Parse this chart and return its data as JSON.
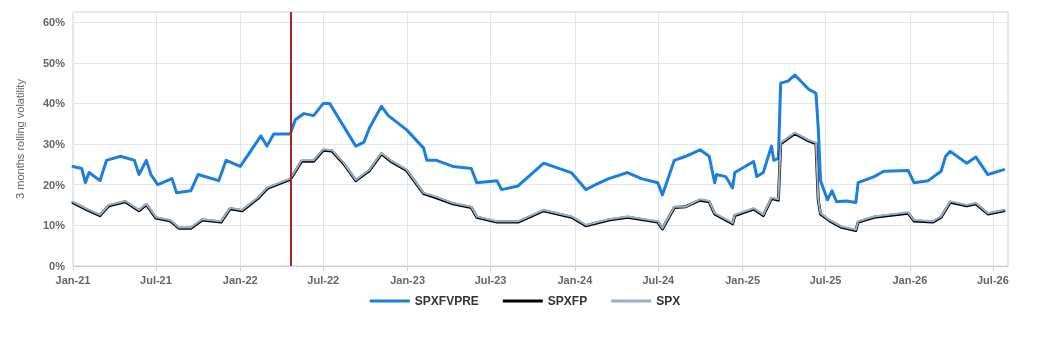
{
  "chart_data": {
    "type": "line",
    "ylabel": "3 months rolling volatility",
    "xlim": [
      "2021-01-01",
      "2026-08-03"
    ],
    "xticks": [
      {
        "value": "2021-01-01",
        "label": "Jan-21"
      },
      {
        "value": "2021-07-01",
        "label": "Jul-21"
      },
      {
        "value": "2022-01-01",
        "label": "Jan-22"
      },
      {
        "value": "2022-07-01",
        "label": "Jul-22"
      },
      {
        "value": "2023-01-01",
        "label": "Jan-23"
      },
      {
        "value": "2023-07-01",
        "label": "Jul-23"
      },
      {
        "value": "2024-01-01",
        "label": "Jan-24"
      },
      {
        "value": "2024-07-01",
        "label": "Jul-24"
      },
      {
        "value": "2025-01-01",
        "label": "Jan-25"
      },
      {
        "value": "2025-07-01",
        "label": "Jul-25"
      },
      {
        "value": "2026-01-01",
        "label": "Jan-26"
      },
      {
        "value": "2026-07-01",
        "label": "Jul-26"
      }
    ],
    "ylim": [
      0,
      62.5
    ],
    "yticks": [
      {
        "value": 0,
        "label": "0%"
      },
      {
        "value": 10,
        "label": "10%"
      },
      {
        "value": 20,
        "label": "20%"
      },
      {
        "value": 30,
        "label": "30%"
      },
      {
        "value": 40,
        "label": "40%"
      },
      {
        "value": 50,
        "label": "50%"
      },
      {
        "value": 60,
        "label": "60%"
      }
    ],
    "grid": true,
    "legend": "bottom",
    "marker": "none",
    "line_style": "solid",
    "ref_lines": [
      {
        "axis": "x",
        "value": "2022-04-20",
        "color": "#b22222"
      }
    ],
    "series": [
      {
        "name": "SPXFVPRE",
        "color": "#1a7fe0",
        "x": [
          "2021-01-01",
          "2021-01-20",
          "2021-01-28",
          "2021-02-05",
          "2021-03-01",
          "2021-03-15",
          "2021-04-15",
          "2021-05-15",
          "2021-05-25",
          "2021-06-10",
          "2021-06-20",
          "2021-07-05",
          "2021-08-05",
          "2021-08-15",
          "2021-09-15",
          "2021-10-01",
          "2021-11-15",
          "2021-12-01",
          "2022-01-01",
          "2022-02-15",
          "2022-02-28",
          "2022-03-15",
          "2022-04-20",
          "2022-05-01",
          "2022-05-20",
          "2022-06-10",
          "2022-07-01",
          "2022-07-15",
          "2022-08-15",
          "2022-09-10",
          "2022-09-28",
          "2022-10-10",
          "2022-11-05",
          "2022-11-20",
          "2022-12-30",
          "2023-02-05",
          "2023-02-12",
          "2023-03-05",
          "2023-04-10",
          "2023-05-20",
          "2023-06-01",
          "2023-07-15",
          "2023-07-25",
          "2023-08-30",
          "2023-10-25",
          "2023-12-25",
          "2024-01-25",
          "2024-02-15",
          "2024-03-15",
          "2024-04-25",
          "2024-05-25",
          "2024-06-30",
          "2024-07-10",
          "2024-08-05",
          "2024-08-30",
          "2024-09-30",
          "2024-10-20",
          "2024-11-01",
          "2024-11-05",
          "2024-11-25",
          "2024-12-10",
          "2024-12-15",
          "2025-01-25",
          "2025-02-01",
          "2025-02-15",
          "2025-03-05",
          "2025-03-10",
          "2025-03-20",
          "2025-03-25",
          "2025-04-10",
          "2025-04-25",
          "2025-05-25",
          "2025-06-10",
          "2025-06-15",
          "2025-06-20",
          "2025-07-05",
          "2025-07-15",
          "2025-07-25",
          "2025-08-15",
          "2025-09-05",
          "2025-09-10",
          "2025-10-15",
          "2025-11-05",
          "2025-12-28",
          "2026-01-10",
          "2026-02-10",
          "2026-03-10",
          "2026-03-20",
          "2026-03-30",
          "2026-05-05",
          "2026-05-25",
          "2026-06-20",
          "2026-07-25"
        ],
        "values": [
          24.5,
          24,
          20.5,
          23,
          21,
          26,
          27,
          26,
          22.5,
          26,
          22.5,
          20,
          21.5,
          18,
          18.5,
          22.5,
          21,
          26,
          24.5,
          32,
          29.5,
          32.5,
          32.5,
          36,
          37.5,
          37,
          40,
          40,
          34.3,
          29.5,
          30.5,
          34,
          39.3,
          37,
          33.5,
          29,
          26,
          26,
          24.5,
          24,
          20.5,
          21,
          18.8,
          19.7,
          25.3,
          22.9,
          18.8,
          20,
          21.5,
          23,
          21.5,
          20.5,
          17.5,
          26,
          27,
          28.6,
          27,
          20.5,
          22.5,
          22,
          19.2,
          23,
          25.7,
          22,
          23,
          29.5,
          26,
          26.5,
          45,
          45.5,
          47,
          43.5,
          42.5,
          34,
          21,
          16.3,
          18.5,
          15.8,
          16,
          15.6,
          20.5,
          22,
          23.3,
          23.5,
          20.5,
          21,
          23.3,
          27,
          28.2,
          25.3,
          26.8,
          22.5,
          23.7
        ]
      },
      {
        "name": "SPXFP",
        "color": "#000000",
        "x": [
          "2021-01-01",
          "2021-02-01",
          "2021-03-01",
          "2021-03-20",
          "2021-04-25",
          "2021-05-25",
          "2021-06-10",
          "2021-07-01",
          "2021-08-01",
          "2021-08-20",
          "2021-09-15",
          "2021-10-10",
          "2021-11-20",
          "2021-12-10",
          "2022-01-05",
          "2022-02-10",
          "2022-03-01",
          "2022-04-20",
          "2022-05-15",
          "2022-06-10",
          "2022-07-01",
          "2022-07-20",
          "2022-08-15",
          "2022-09-10",
          "2022-10-10",
          "2022-11-05",
          "2022-11-25",
          "2022-12-30",
          "2023-02-05",
          "2023-03-05",
          "2023-04-10",
          "2023-05-20",
          "2023-06-01",
          "2023-07-15",
          "2023-08-30",
          "2023-10-25",
          "2023-12-25",
          "2024-01-25",
          "2024-03-15",
          "2024-04-25",
          "2024-06-30",
          "2024-07-10",
          "2024-08-05",
          "2024-08-30",
          "2024-09-30",
          "2024-10-20",
          "2024-11-01",
          "2024-12-10",
          "2024-12-15",
          "2025-01-25",
          "2025-02-15",
          "2025-03-05",
          "2025-03-20",
          "2025-03-25",
          "2025-04-25",
          "2025-05-25",
          "2025-06-10",
          "2025-06-15",
          "2025-06-20",
          "2025-07-10",
          "2025-08-05",
          "2025-09-05",
          "2025-09-10",
          "2025-10-15",
          "2025-12-28",
          "2026-01-10",
          "2026-02-20",
          "2026-03-10",
          "2026-03-30",
          "2026-05-05",
          "2026-05-25",
          "2026-06-20",
          "2026-07-25"
        ],
        "values": [
          15.6,
          13.8,
          12.4,
          14.8,
          15.8,
          13.6,
          15.1,
          11.8,
          11.1,
          9.3,
          9.3,
          11.3,
          10.8,
          14.1,
          13.6,
          16.8,
          19.1,
          21.3,
          25.8,
          25.8,
          28.5,
          28.3,
          25.1,
          21,
          23.5,
          27.6,
          25.8,
          23.5,
          17.8,
          16.8,
          15.3,
          14.4,
          12,
          10.8,
          10.8,
          13.6,
          12,
          9.9,
          11.3,
          12,
          10.8,
          9.1,
          14.4,
          14.6,
          16.2,
          15.8,
          12.8,
          10.4,
          12.4,
          14,
          12.4,
          16.6,
          16.2,
          30.1,
          32.6,
          30.8,
          30.1,
          16.2,
          12.8,
          11.1,
          9.5,
          8.7,
          10.8,
          12,
          13,
          11.1,
          10.8,
          12,
          15.7,
          14.8,
          15.3,
          12.8,
          13.6
        ]
      },
      {
        "name": "SPX",
        "color": "#98afc7",
        "x": [
          "2021-01-01",
          "2021-02-01",
          "2021-03-01",
          "2021-03-20",
          "2021-04-25",
          "2021-05-25",
          "2021-06-10",
          "2021-07-01",
          "2021-08-01",
          "2021-08-20",
          "2021-09-15",
          "2021-10-10",
          "2021-11-20",
          "2021-12-10",
          "2022-01-05",
          "2022-02-10",
          "2022-03-01",
          "2022-04-20",
          "2022-05-15",
          "2022-06-10",
          "2022-07-01",
          "2022-07-20",
          "2022-08-15",
          "2022-09-10",
          "2022-10-10",
          "2022-11-05",
          "2022-11-25",
          "2022-12-30",
          "2023-02-05",
          "2023-03-05",
          "2023-04-10",
          "2023-05-20",
          "2023-06-01",
          "2023-07-15",
          "2023-08-30",
          "2023-10-25",
          "2023-12-25",
          "2024-01-25",
          "2024-03-15",
          "2024-04-25",
          "2024-06-30",
          "2024-07-10",
          "2024-08-05",
          "2024-08-30",
          "2024-09-30",
          "2024-10-20",
          "2024-11-01",
          "2024-12-10",
          "2024-12-15",
          "2025-01-25",
          "2025-02-15",
          "2025-03-05",
          "2025-03-20",
          "2025-03-25",
          "2025-04-25",
          "2025-05-25",
          "2025-06-10",
          "2025-06-15",
          "2025-06-20",
          "2025-07-10",
          "2025-08-05",
          "2025-09-05",
          "2025-09-10",
          "2025-10-15",
          "2025-12-28",
          "2026-01-10",
          "2026-02-20",
          "2026-03-10",
          "2026-03-30",
          "2026-05-05",
          "2026-05-25",
          "2026-06-20",
          "2026-07-25"
        ],
        "values": [
          15.8,
          14,
          12.6,
          15,
          16,
          13.8,
          15.3,
          12,
          11.3,
          9.5,
          9.5,
          11.5,
          11,
          14.3,
          13.8,
          17,
          19.3,
          21.5,
          26,
          26,
          28.7,
          28.5,
          25.3,
          21.2,
          23.7,
          27.8,
          26,
          23.7,
          18,
          17,
          15.5,
          14.6,
          12.2,
          11,
          11,
          13.8,
          12.2,
          10.1,
          11.5,
          12.2,
          11,
          9.3,
          14.6,
          14.6,
          16.4,
          16,
          13,
          10.6,
          12.6,
          14.2,
          12.6,
          16.8,
          16.4,
          30.3,
          32.8,
          31,
          30.3,
          16.4,
          13,
          11.3,
          9.7,
          8.9,
          11,
          12.2,
          13.2,
          11.3,
          11,
          12.2,
          15.9,
          15,
          15.5,
          13,
          13.8
        ]
      }
    ]
  }
}
